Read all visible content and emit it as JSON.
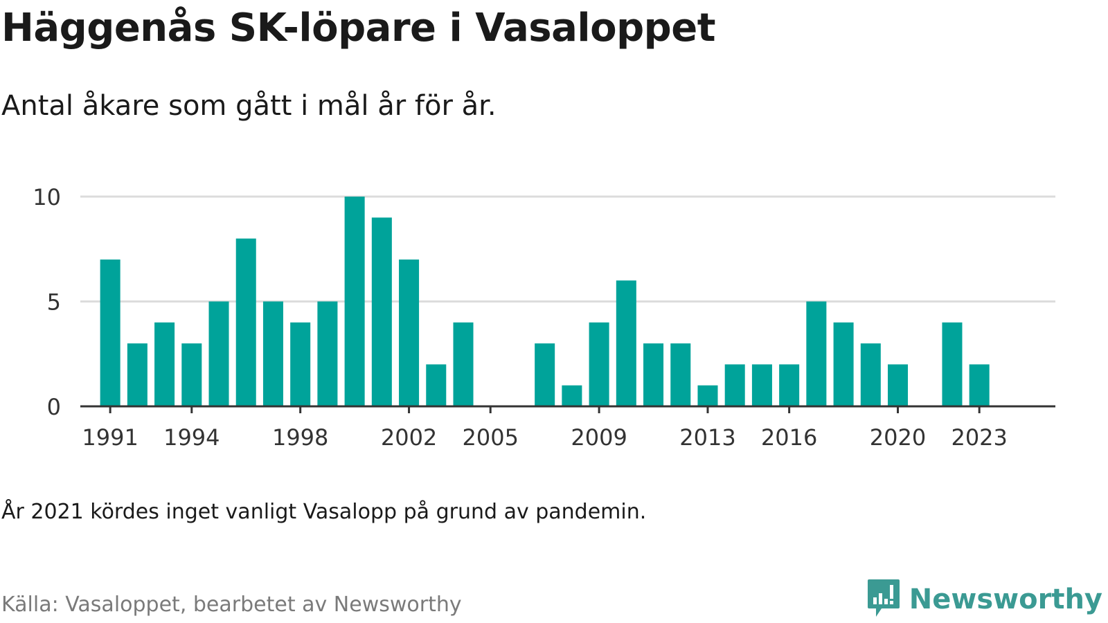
{
  "header": {
    "title": "Häggenås SK-löpare i Vasaloppet",
    "subtitle": "Antal åkare som gått i mål år för år."
  },
  "footer": {
    "note": "År 2021 kördes inget vanligt Vasalopp på grund av pandemin.",
    "source": "Källa: Vasaloppet, bearbetet av Newsworthy",
    "brand": "Newsworthy",
    "brand_icon": "bar-chart-speech-bubble-icon"
  },
  "colors": {
    "bar": "#00a39a",
    "brand": "#3b9a93",
    "grid": "#dcdcdc",
    "axis": "#333333",
    "source_text": "#7a7a7a"
  },
  "chart_data": {
    "type": "bar",
    "title": "Häggenås SK-löpare i Vasaloppet",
    "subtitle": "Antal åkare som gått i mål år för år.",
    "xlabel": "",
    "ylabel": "",
    "ylim": [
      0,
      10
    ],
    "yticks": [
      0,
      5,
      10
    ],
    "xlim": [
      1989.9,
      2025.8
    ],
    "xticks": [
      1991,
      1994,
      1998,
      2002,
      2005,
      2009,
      2013,
      2016,
      2020,
      2023
    ],
    "grid": true,
    "legend": "none",
    "x": [
      1991,
      1992,
      1993,
      1994,
      1995,
      1996,
      1997,
      1998,
      1999,
      2000,
      2001,
      2002,
      2003,
      2004,
      2005,
      2006,
      2007,
      2008,
      2009,
      2010,
      2011,
      2012,
      2013,
      2014,
      2015,
      2016,
      2017,
      2018,
      2019,
      2020,
      2021,
      2022,
      2023
    ],
    "values": [
      7,
      3,
      4,
      3,
      5,
      8,
      5,
      4,
      5,
      10,
      9,
      7,
      2,
      4,
      0,
      0,
      3,
      1,
      4,
      6,
      3,
      3,
      1,
      2,
      2,
      2,
      5,
      4,
      3,
      2,
      0,
      4,
      2
    ]
  }
}
